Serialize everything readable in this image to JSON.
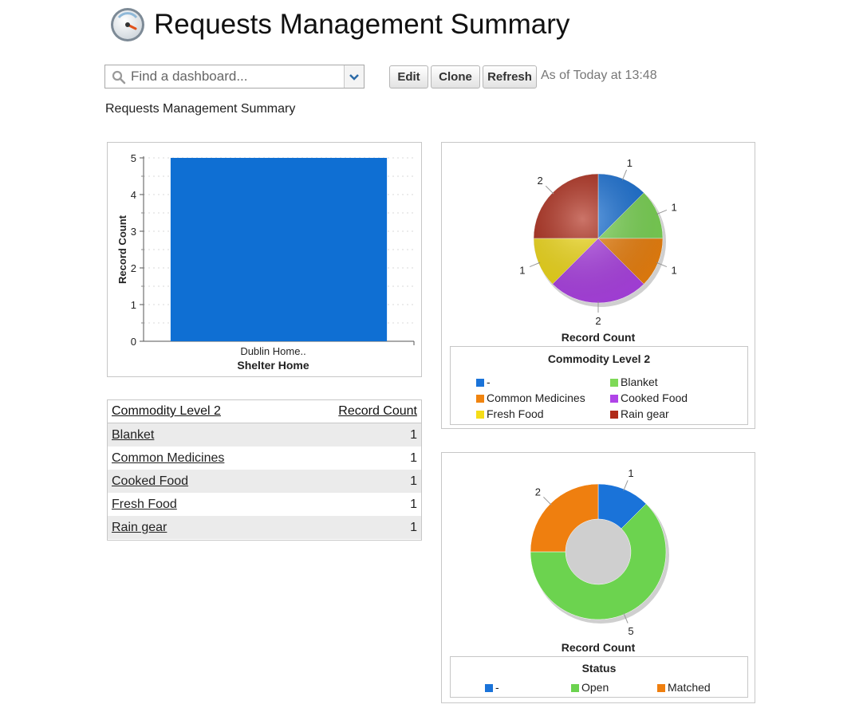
{
  "header": {
    "title": "Requests Management Summary"
  },
  "toolbar": {
    "search_placeholder": "Find a dashboard...",
    "edit_label": "Edit",
    "clone_label": "Clone",
    "refresh_label": "Refresh",
    "as_of": "As of Today at 13:48"
  },
  "subtitle": "Requests Management Summary",
  "bar_chart": {
    "ylabel": "Record Count",
    "tick_labels": [
      "0",
      "1",
      "2",
      "3",
      "4",
      "5"
    ],
    "category_label": "Dublin Home..",
    "xlabel": "Shelter Home"
  },
  "pie_chart": {
    "caption": "Record Count",
    "legend_title": "Commodity Level 2",
    "legend": [
      {
        "label": "-",
        "color": "#1a73d9"
      },
      {
        "label": "Blanket",
        "color": "#7ed957"
      },
      {
        "label": "Common Medicines",
        "color": "#f08410"
      },
      {
        "label": "Cooked Food",
        "color": "#b044e8"
      },
      {
        "label": "Fresh Food",
        "color": "#f5dd18"
      },
      {
        "label": "Rain gear",
        "color": "#b02a18"
      }
    ],
    "slice_labels": [
      "1",
      "1",
      "1",
      "2",
      "1",
      "2"
    ]
  },
  "donut_chart": {
    "caption": "Record Count",
    "legend_title": "Status",
    "legend": [
      {
        "label": "-",
        "color": "#1a73d9"
      },
      {
        "label": "Open",
        "color": "#6cd34f"
      },
      {
        "label": "Matched",
        "color": "#ef7f0f"
      }
    ],
    "slice_labels": [
      "1",
      "5",
      "2"
    ]
  },
  "table": {
    "headers": [
      "Commodity Level 2",
      "Record Count"
    ],
    "rows": [
      {
        "name": "Blanket",
        "count": "1"
      },
      {
        "name": "Common Medicines",
        "count": "1"
      },
      {
        "name": "Cooked Food",
        "count": "1"
      },
      {
        "name": "Fresh Food",
        "count": "1"
      },
      {
        "name": "Rain gear",
        "count": "1"
      }
    ]
  },
  "chart_data": [
    {
      "type": "bar",
      "categories": [
        "Dublin Home.."
      ],
      "values": [
        5
      ],
      "xlabel": "Shelter Home",
      "ylabel": "Record Count",
      "ylim": [
        0,
        5
      ],
      "grid": true
    },
    {
      "type": "pie",
      "labels": [
        "-",
        "Blanket",
        "Common Medicines",
        "Cooked Food",
        "Fresh Food",
        "Rain gear"
      ],
      "values": [
        1,
        1,
        1,
        2,
        1,
        2
      ],
      "title": "Record Count",
      "legend_title": "Commodity Level 2",
      "legend_position": "bottom"
    },
    {
      "type": "pie",
      "donut": true,
      "labels": [
        "-",
        "Open",
        "Matched"
      ],
      "values": [
        1,
        5,
        2
      ],
      "title": "Record Count",
      "legend_title": "Status",
      "legend_position": "bottom"
    }
  ]
}
